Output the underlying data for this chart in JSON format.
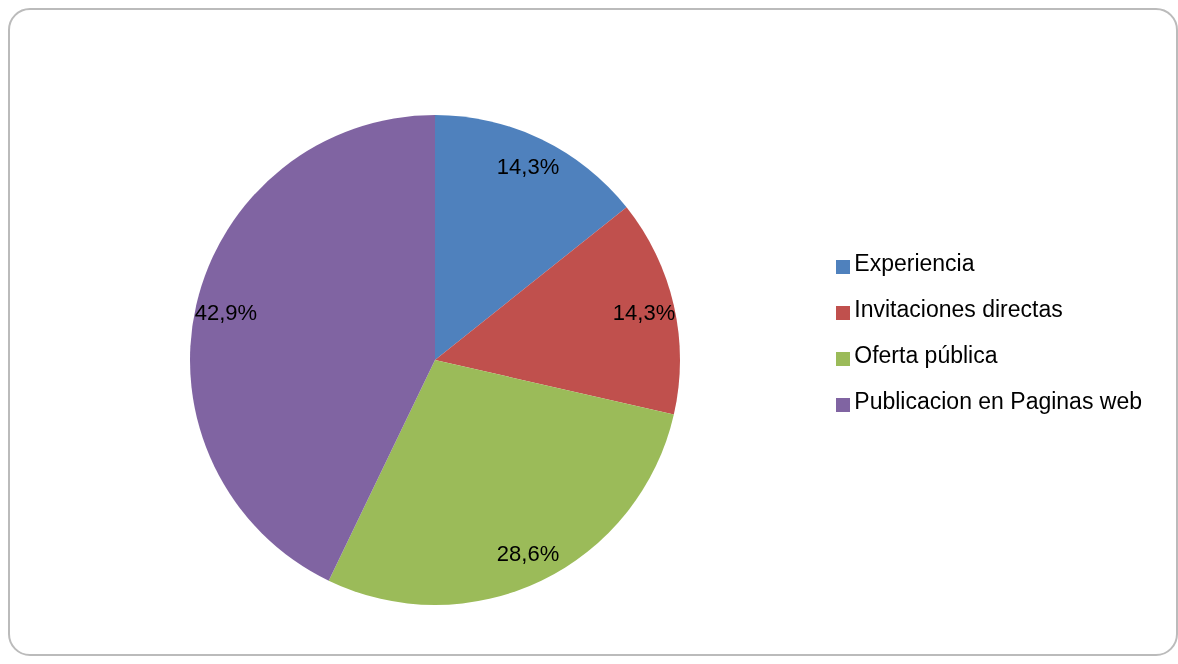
{
  "chart_data": {
    "type": "pie",
    "categories": [
      "Experiencia",
      "Invitaciones directas",
      "Oferta pública",
      "Publicacion en Paginas web"
    ],
    "values": [
      14.3,
      14.3,
      28.6,
      42.9
    ],
    "colors": [
      "#4f81bd",
      "#c0504d",
      "#9bbb59",
      "#8064a2"
    ],
    "value_labels": [
      "14,3%",
      "14,3%",
      "28,6%",
      "42,9%"
    ],
    "legend": "right"
  }
}
